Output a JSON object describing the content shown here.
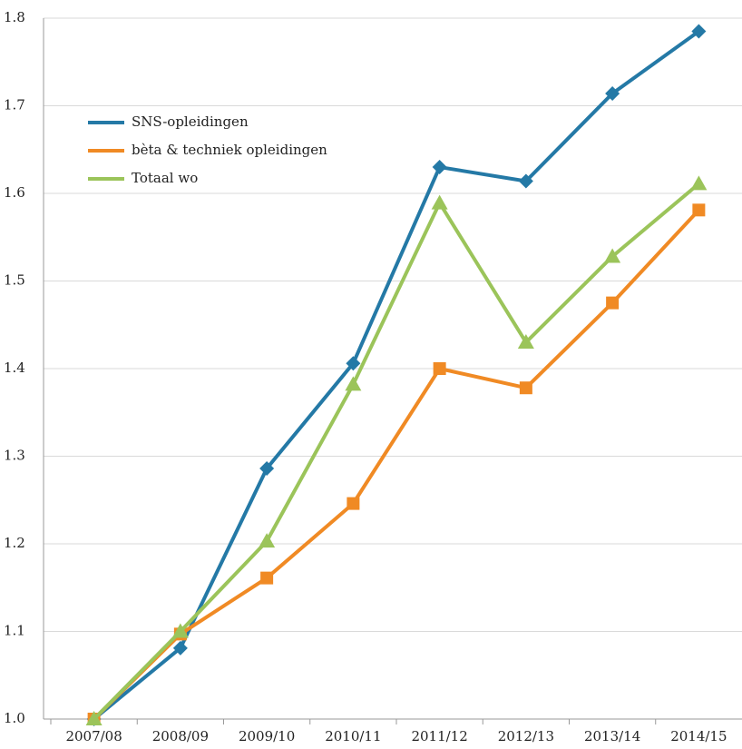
{
  "chart_data": {
    "type": "line",
    "categories": [
      "2007/08",
      "2008/09",
      "2009/10",
      "2010/11",
      "2011/12",
      "2012/13",
      "2013/14",
      "2014/15"
    ],
    "series": [
      {
        "name": "SNS-opleidingen",
        "color": "#2479a6",
        "marker": "diamond",
        "values": [
          1.0,
          1.081,
          1.286,
          1.406,
          1.63,
          1.614,
          1.714,
          1.785
        ]
      },
      {
        "name": "bèta & techniek opleidingen",
        "color": "#f08a24",
        "marker": "square",
        "values": [
          1.0,
          1.097,
          1.161,
          1.246,
          1.4,
          1.378,
          1.475,
          1.581
        ]
      },
      {
        "name": "Totaal wo",
        "color": "#9bc45a",
        "marker": "triangle",
        "values": [
          1.0,
          1.1,
          1.203,
          1.382,
          1.589,
          1.43,
          1.528,
          1.611
        ]
      }
    ],
    "ylim": [
      1,
      1.8
    ],
    "yticks": [
      {
        "value": 1,
        "label": "1.0"
      },
      1.1,
      1.2,
      1.3,
      1.4,
      1.5,
      1.6,
      1.7,
      1.8
    ],
    "grid": true,
    "legend": "upper left"
  }
}
